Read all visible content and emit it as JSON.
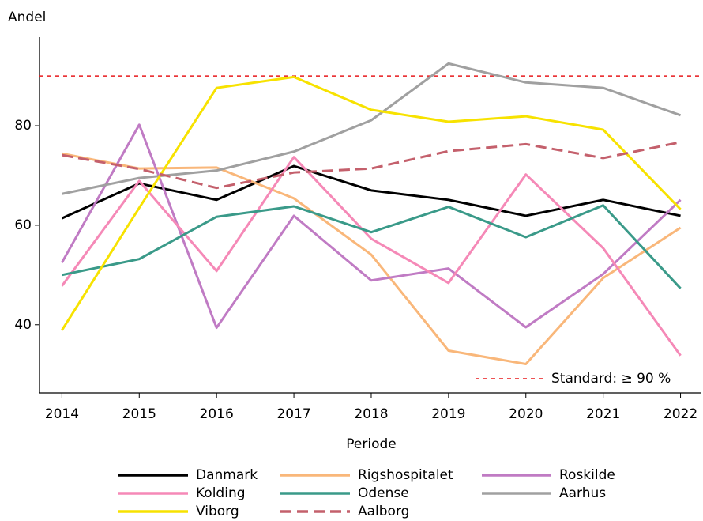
{
  "chart_data": {
    "type": "line",
    "ylabel": "Andel",
    "xlabel": "Periode",
    "x": [
      2014,
      2015,
      2016,
      2017,
      2018,
      2019,
      2020,
      2021,
      2022
    ],
    "xlim": [
      2013.71,
      2022.26
    ],
    "xticks": [
      2014,
      2015,
      2016,
      2017,
      2018,
      2019,
      2020,
      2021,
      2022
    ],
    "ylim": [
      26.3,
      97.8
    ],
    "yticks": [
      40,
      60,
      80
    ],
    "reference_line": {
      "value": 90,
      "label": "Standard: ≥ 90 %",
      "color": "#e8191c",
      "style": "dashed"
    },
    "series": [
      {
        "name": "Danmark",
        "color": "#000000",
        "style": "solid",
        "values": [
          61.4,
          68.4,
          65.1,
          71.9,
          67.0,
          65.1,
          61.9,
          65.1,
          61.9
        ]
      },
      {
        "name": "Rigshospitalet",
        "color": "#f9b77a",
        "style": "solid",
        "values": [
          74.4,
          71.4,
          71.6,
          65.4,
          54.1,
          34.8,
          32.1,
          49.4,
          59.5
        ]
      },
      {
        "name": "Roskilde",
        "color": "#c07bc4",
        "style": "solid",
        "values": [
          52.5,
          80.2,
          39.4,
          61.9,
          48.9,
          51.3,
          39.5,
          50.2,
          65.1
        ]
      },
      {
        "name": "Kolding",
        "color": "#f589b7",
        "style": "solid",
        "values": [
          47.8,
          68.9,
          50.8,
          73.7,
          57.3,
          48.4,
          70.2,
          55.4,
          33.8
        ]
      },
      {
        "name": "Odense",
        "color": "#3a9a89",
        "style": "solid",
        "values": [
          50.0,
          53.2,
          61.7,
          63.8,
          58.6,
          63.7,
          57.6,
          64.0,
          47.3
        ]
      },
      {
        "name": "Aarhus",
        "color": "#a0a0a0",
        "style": "solid",
        "values": [
          66.3,
          69.5,
          71.0,
          74.8,
          81.1,
          92.5,
          88.7,
          87.6,
          82.1
        ]
      },
      {
        "name": "Viborg",
        "color": "#f7e200",
        "style": "solid",
        "values": [
          38.9,
          63.5,
          87.6,
          89.8,
          83.2,
          80.8,
          81.9,
          79.2,
          63.2
        ]
      },
      {
        "name": "Aalborg",
        "color": "#c4606c",
        "style": "dashed",
        "values": [
          74.1,
          71.3,
          67.5,
          70.6,
          71.4,
          74.9,
          76.3,
          73.5,
          76.7
        ]
      }
    ]
  }
}
